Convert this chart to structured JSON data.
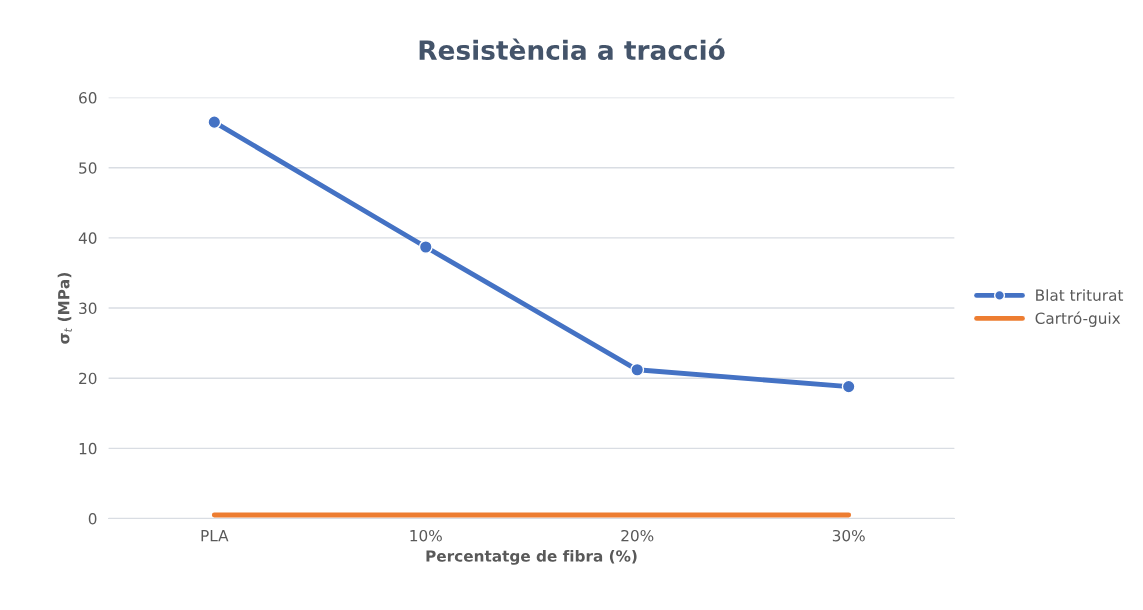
{
  "chart_data": {
    "type": "line",
    "title": "Resistència a tracció",
    "xlabel": "Percentatge de fibra (%)",
    "ylabel": "σ$_{t}$ (MPa)",
    "categories": [
      "PLA",
      "10%",
      "20%",
      "30%"
    ],
    "series": [
      {
        "name": "Blat triturat",
        "color": "#4472c4",
        "values": [
          56.5,
          38.7,
          21.2,
          18.8
        ],
        "marker": "circle"
      },
      {
        "name": "Cartró-guix",
        "color": "#ed7d31",
        "values": [
          0.5,
          0.5,
          0.5,
          0.5
        ],
        "marker": "none"
      }
    ],
    "ylim": [
      0,
      60
    ],
    "yticks": [
      0,
      10,
      20,
      30,
      40,
      50,
      60
    ],
    "grid": "y",
    "legend": "right"
  }
}
